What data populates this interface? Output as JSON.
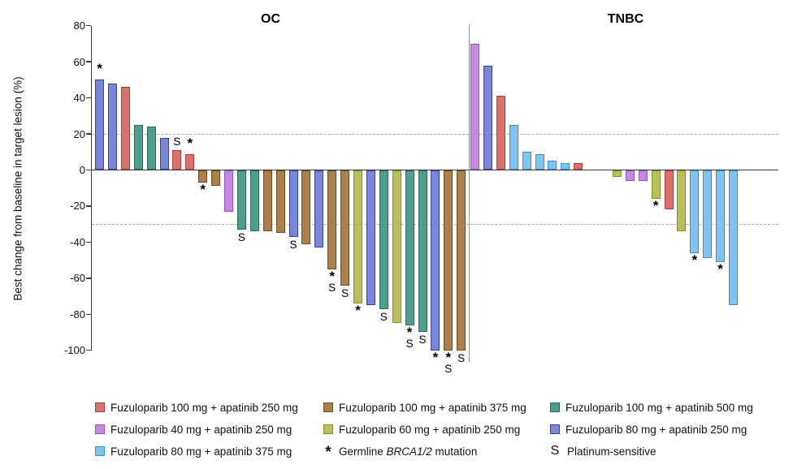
{
  "chart_data": {
    "type": "bar",
    "subtype": "waterfall",
    "title": "",
    "ylabel": "Best change from baseline in target lesion (%)",
    "ylim": [
      -100,
      80
    ],
    "yticks": [
      80,
      60,
      40,
      20,
      0,
      -20,
      -40,
      -60,
      -80,
      -100
    ],
    "reference_lines": [
      20,
      -30
    ],
    "grid": false,
    "legend_position": "bottom",
    "mark_meanings": {
      "*": "Germline BRCA1/2 mutation",
      "S": "Platinum-sensitive"
    },
    "groups": [
      {
        "title": "OC",
        "bars": [
          {
            "value": 50,
            "treatment": "f80_a250",
            "marks": [
              "*"
            ]
          },
          {
            "value": 48,
            "treatment": "f80_a250",
            "marks": []
          },
          {
            "value": 46,
            "treatment": "f100_a250",
            "marks": []
          },
          {
            "value": 25,
            "treatment": "f100_a500",
            "marks": []
          },
          {
            "value": 24,
            "treatment": "f100_a500",
            "marks": []
          },
          {
            "value": 18,
            "treatment": "f80_a250",
            "marks": []
          },
          {
            "value": 11,
            "treatment": "f100_a250",
            "marks": [
              "S"
            ]
          },
          {
            "value": 9,
            "treatment": "f100_a250",
            "marks": [
              "*"
            ]
          },
          {
            "value": -7,
            "treatment": "f100_a375",
            "marks": [
              "*"
            ]
          },
          {
            "value": -9,
            "treatment": "f100_a375",
            "marks": []
          },
          {
            "value": -23,
            "treatment": "f40_a250",
            "marks": []
          },
          {
            "value": -33,
            "treatment": "f100_a500",
            "marks": [
              "S"
            ]
          },
          {
            "value": -34,
            "treatment": "f100_a500",
            "marks": []
          },
          {
            "value": -34,
            "treatment": "f100_a375",
            "marks": []
          },
          {
            "value": -35,
            "treatment": "f100_a375",
            "marks": []
          },
          {
            "value": -37,
            "treatment": "f80_a250",
            "marks": [
              "S"
            ]
          },
          {
            "value": -41,
            "treatment": "f100_a375",
            "marks": []
          },
          {
            "value": -43,
            "treatment": "f80_a250",
            "marks": []
          },
          {
            "value": -55,
            "treatment": "f100_a375",
            "marks": [
              "*",
              "S"
            ]
          },
          {
            "value": -64,
            "treatment": "f100_a375",
            "marks": [
              "S"
            ]
          },
          {
            "value": -74,
            "treatment": "f60_a250",
            "marks": [
              "*"
            ]
          },
          {
            "value": -75,
            "treatment": "f80_a250",
            "marks": []
          },
          {
            "value": -77,
            "treatment": "f100_a500",
            "marks": [
              "S"
            ]
          },
          {
            "value": -85,
            "treatment": "f60_a250",
            "marks": []
          },
          {
            "value": -86,
            "treatment": "f100_a500",
            "marks": [
              "*",
              "S"
            ]
          },
          {
            "value": -90,
            "treatment": "f100_a500",
            "marks": [
              "S"
            ]
          },
          {
            "value": -100,
            "treatment": "f80_a250",
            "marks": [
              "*"
            ]
          },
          {
            "value": -100,
            "treatment": "f100_a375",
            "marks": [
              "*",
              "S"
            ]
          },
          {
            "value": -100,
            "treatment": "f100_a375",
            "marks": [
              "S"
            ]
          }
        ]
      },
      {
        "title": "TNBC",
        "bars": [
          {
            "value": 70,
            "treatment": "f40_a250",
            "marks": []
          },
          {
            "value": 58,
            "treatment": "f80_a250",
            "marks": []
          },
          {
            "value": 41,
            "treatment": "f100_a250",
            "marks": []
          },
          {
            "value": 25,
            "treatment": "f80_a375",
            "marks": []
          },
          {
            "value": 10,
            "treatment": "f80_a375",
            "marks": []
          },
          {
            "value": 9,
            "treatment": "f80_a375",
            "marks": []
          },
          {
            "value": 5,
            "treatment": "f80_a375",
            "marks": []
          },
          {
            "value": 4,
            "treatment": "f80_a375",
            "marks": []
          },
          {
            "value": 4,
            "treatment": "f100_a250",
            "marks": []
          },
          {
            "gap": true
          },
          {
            "gap": true
          },
          {
            "value": -4,
            "treatment": "f60_a250",
            "marks": []
          },
          {
            "value": -6,
            "treatment": "f40_a250",
            "marks": []
          },
          {
            "value": -6,
            "treatment": "f40_a250",
            "marks": []
          },
          {
            "value": -16,
            "treatment": "f60_a250",
            "marks": [
              "*"
            ]
          },
          {
            "value": -22,
            "treatment": "f100_a250",
            "marks": []
          },
          {
            "value": -34,
            "treatment": "f60_a250",
            "marks": []
          },
          {
            "value": -46,
            "treatment": "f80_a375",
            "marks": [
              "*"
            ]
          },
          {
            "value": -49,
            "treatment": "f80_a375",
            "marks": []
          },
          {
            "value": -51,
            "treatment": "f80_a375",
            "marks": [
              "*"
            ]
          },
          {
            "value": -75,
            "treatment": "f80_a375",
            "marks": []
          }
        ]
      }
    ]
  },
  "colors": {
    "f100_a250": {
      "fill": "#D97170",
      "stroke": "#AA403E"
    },
    "f40_a250": {
      "fill": "#C38AE0",
      "stroke": "#9455BE"
    },
    "f80_a375": {
      "fill": "#83C3ED",
      "stroke": "#3C8BCC"
    },
    "f100_a375": {
      "fill": "#A8824D",
      "stroke": "#6D4D21"
    },
    "f60_a250": {
      "fill": "#B9BF5D",
      "stroke": "#858D29"
    },
    "f100_a500": {
      "fill": "#4F9D8D",
      "stroke": "#2B695B"
    },
    "f80_a250": {
      "fill": "#7987D6",
      "stroke": "#3142A0"
    }
  },
  "legend": {
    "columns": [
      {
        "items": [
          {
            "type": "swatch",
            "treatment": "f100_a250",
            "label": "Fuzuloparib 100 mg + apatinib 250 mg"
          },
          {
            "type": "swatch",
            "treatment": "f40_a250",
            "label": "Fuzuloparib 40 mg + apatinib 250 mg"
          },
          {
            "type": "swatch",
            "treatment": "f80_a375",
            "label": "Fuzuloparib 80 mg + apatinib 375 mg"
          }
        ]
      },
      {
        "items": [
          {
            "type": "swatch",
            "treatment": "f100_a375",
            "label": "Fuzuloparib 100 mg + apatinib 375 mg"
          },
          {
            "type": "swatch",
            "treatment": "f60_a250",
            "label": "Fuzuloparib 60 mg + apatinib 250 mg"
          },
          {
            "type": "glyph",
            "glyph": "*",
            "label_prefix": "Germline ",
            "label_italic": "BRCA1/2",
            "label_suffix": " mutation"
          }
        ]
      },
      {
        "items": [
          {
            "type": "swatch",
            "treatment": "f100_a500",
            "label": "Fuzuloparib 100 mg + apatinib 500 mg"
          },
          {
            "type": "swatch",
            "treatment": "f80_a250",
            "label": "Fuzuloparib 80 mg + apatinib 250 mg"
          },
          {
            "type": "glyph",
            "glyph": "S",
            "label": "Platinum-sensitive"
          }
        ]
      }
    ]
  }
}
